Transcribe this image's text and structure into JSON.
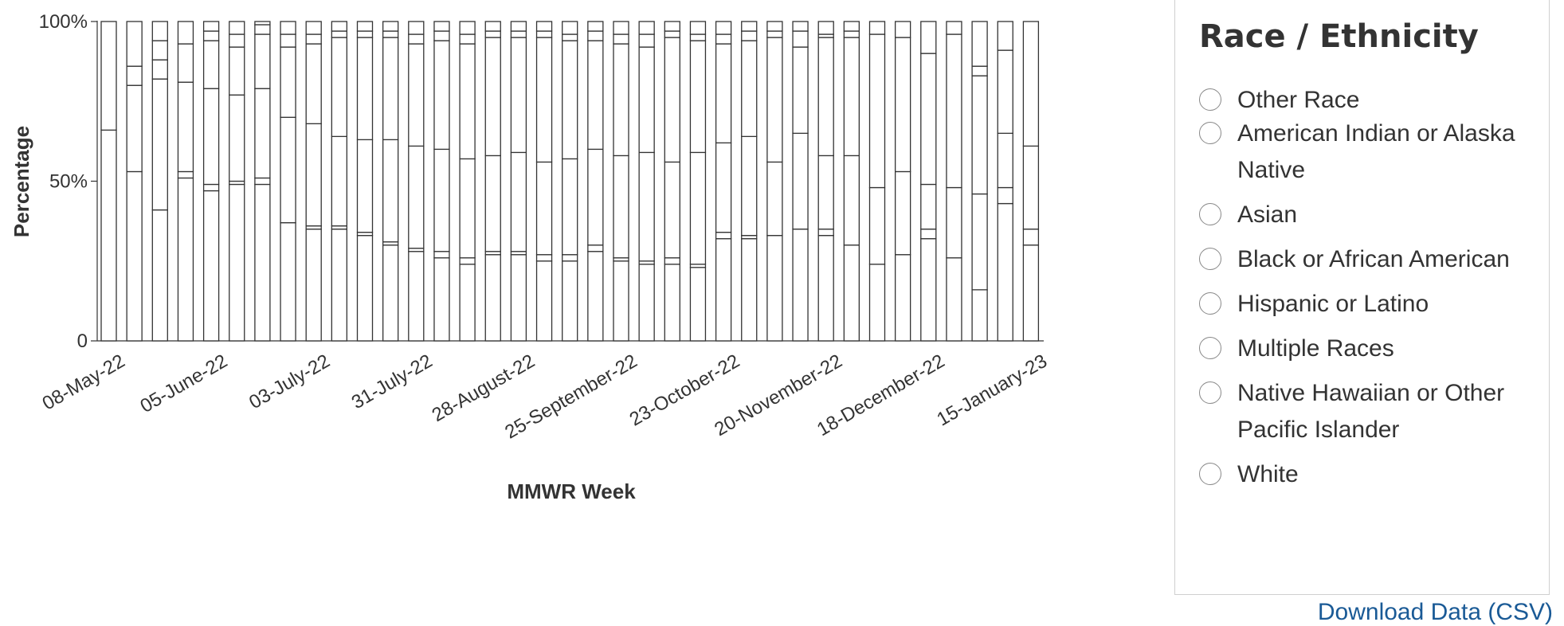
{
  "chart_data": {
    "type": "bar",
    "stacked": true,
    "xlabel": "MMWR Week",
    "ylabel": "Percentage",
    "ylim": [
      0,
      100
    ],
    "y_ticks": [
      "0",
      "50%",
      "100%"
    ],
    "x_tick_labels": [
      "08-May-22",
      "05-June-22",
      "03-July-22",
      "31-July-22",
      "28-August-22",
      "25-September-22",
      "23-October-22",
      "20-November-22",
      "18-December-22",
      "15-January-23"
    ],
    "x_tick_every": 4,
    "bar_fill": "#ffffff",
    "bar_stroke": "#333333",
    "bars": [
      [
        66,
        100
      ],
      [
        53,
        80,
        86,
        100
      ],
      [
        41,
        82,
        88,
        94,
        100
      ],
      [
        51,
        53,
        81,
        93,
        100
      ],
      [
        47,
        49,
        79,
        94,
        97,
        100
      ],
      [
        49,
        50,
        77,
        92,
        96,
        100
      ],
      [
        49,
        51,
        79,
        96,
        99,
        100
      ],
      [
        37,
        70,
        92,
        96,
        100
      ],
      [
        35,
        36,
        68,
        93,
        96,
        100
      ],
      [
        35,
        36,
        64,
        95,
        97,
        100
      ],
      [
        33,
        34,
        63,
        95,
        97,
        100
      ],
      [
        30,
        31,
        63,
        95,
        97,
        100
      ],
      [
        28,
        29,
        61,
        93,
        96,
        100
      ],
      [
        26,
        28,
        60,
        94,
        97,
        100
      ],
      [
        24,
        26,
        57,
        93,
        96,
        100
      ],
      [
        27,
        28,
        58,
        95,
        97,
        100
      ],
      [
        27,
        28,
        59,
        95,
        97,
        100
      ],
      [
        25,
        27,
        56,
        95,
        97,
        100
      ],
      [
        25,
        27,
        57,
        94,
        96,
        100
      ],
      [
        28,
        30,
        60,
        94,
        97,
        100
      ],
      [
        25,
        26,
        58,
        93,
        96,
        100
      ],
      [
        24,
        25,
        59,
        92,
        96,
        100
      ],
      [
        24,
        26,
        56,
        95,
        97,
        100
      ],
      [
        23,
        24,
        59,
        94,
        96,
        100
      ],
      [
        32,
        34,
        62,
        93,
        96,
        100
      ],
      [
        32,
        33,
        64,
        94,
        97,
        100
      ],
      [
        33,
        56,
        95,
        97,
        100
      ],
      [
        35,
        65,
        92,
        97,
        100
      ],
      [
        33,
        35,
        58,
        95,
        96,
        100
      ],
      [
        30,
        58,
        95,
        97,
        100
      ],
      [
        24,
        48,
        96,
        100
      ],
      [
        27,
        53,
        95,
        100
      ],
      [
        32,
        35,
        49,
        90,
        100
      ],
      [
        26,
        48,
        96,
        100
      ],
      [
        16,
        46,
        83,
        86,
        100
      ],
      [
        43,
        48,
        65,
        91,
        100
      ],
      [
        30,
        35,
        61,
        100
      ]
    ]
  },
  "legend": {
    "title": "Race / Ethnicity",
    "items": [
      {
        "label": "Other Race"
      },
      {
        "label": "American Indian or Alaska Native"
      },
      {
        "label": "Asian"
      },
      {
        "label": "Black or African American"
      },
      {
        "label": "Hispanic or Latino"
      },
      {
        "label": "Multiple Races"
      },
      {
        "label": "Native Hawaiian or Other Pacific Islander"
      },
      {
        "label": "White"
      }
    ]
  },
  "download_link": {
    "label": "Download Data (CSV)"
  }
}
